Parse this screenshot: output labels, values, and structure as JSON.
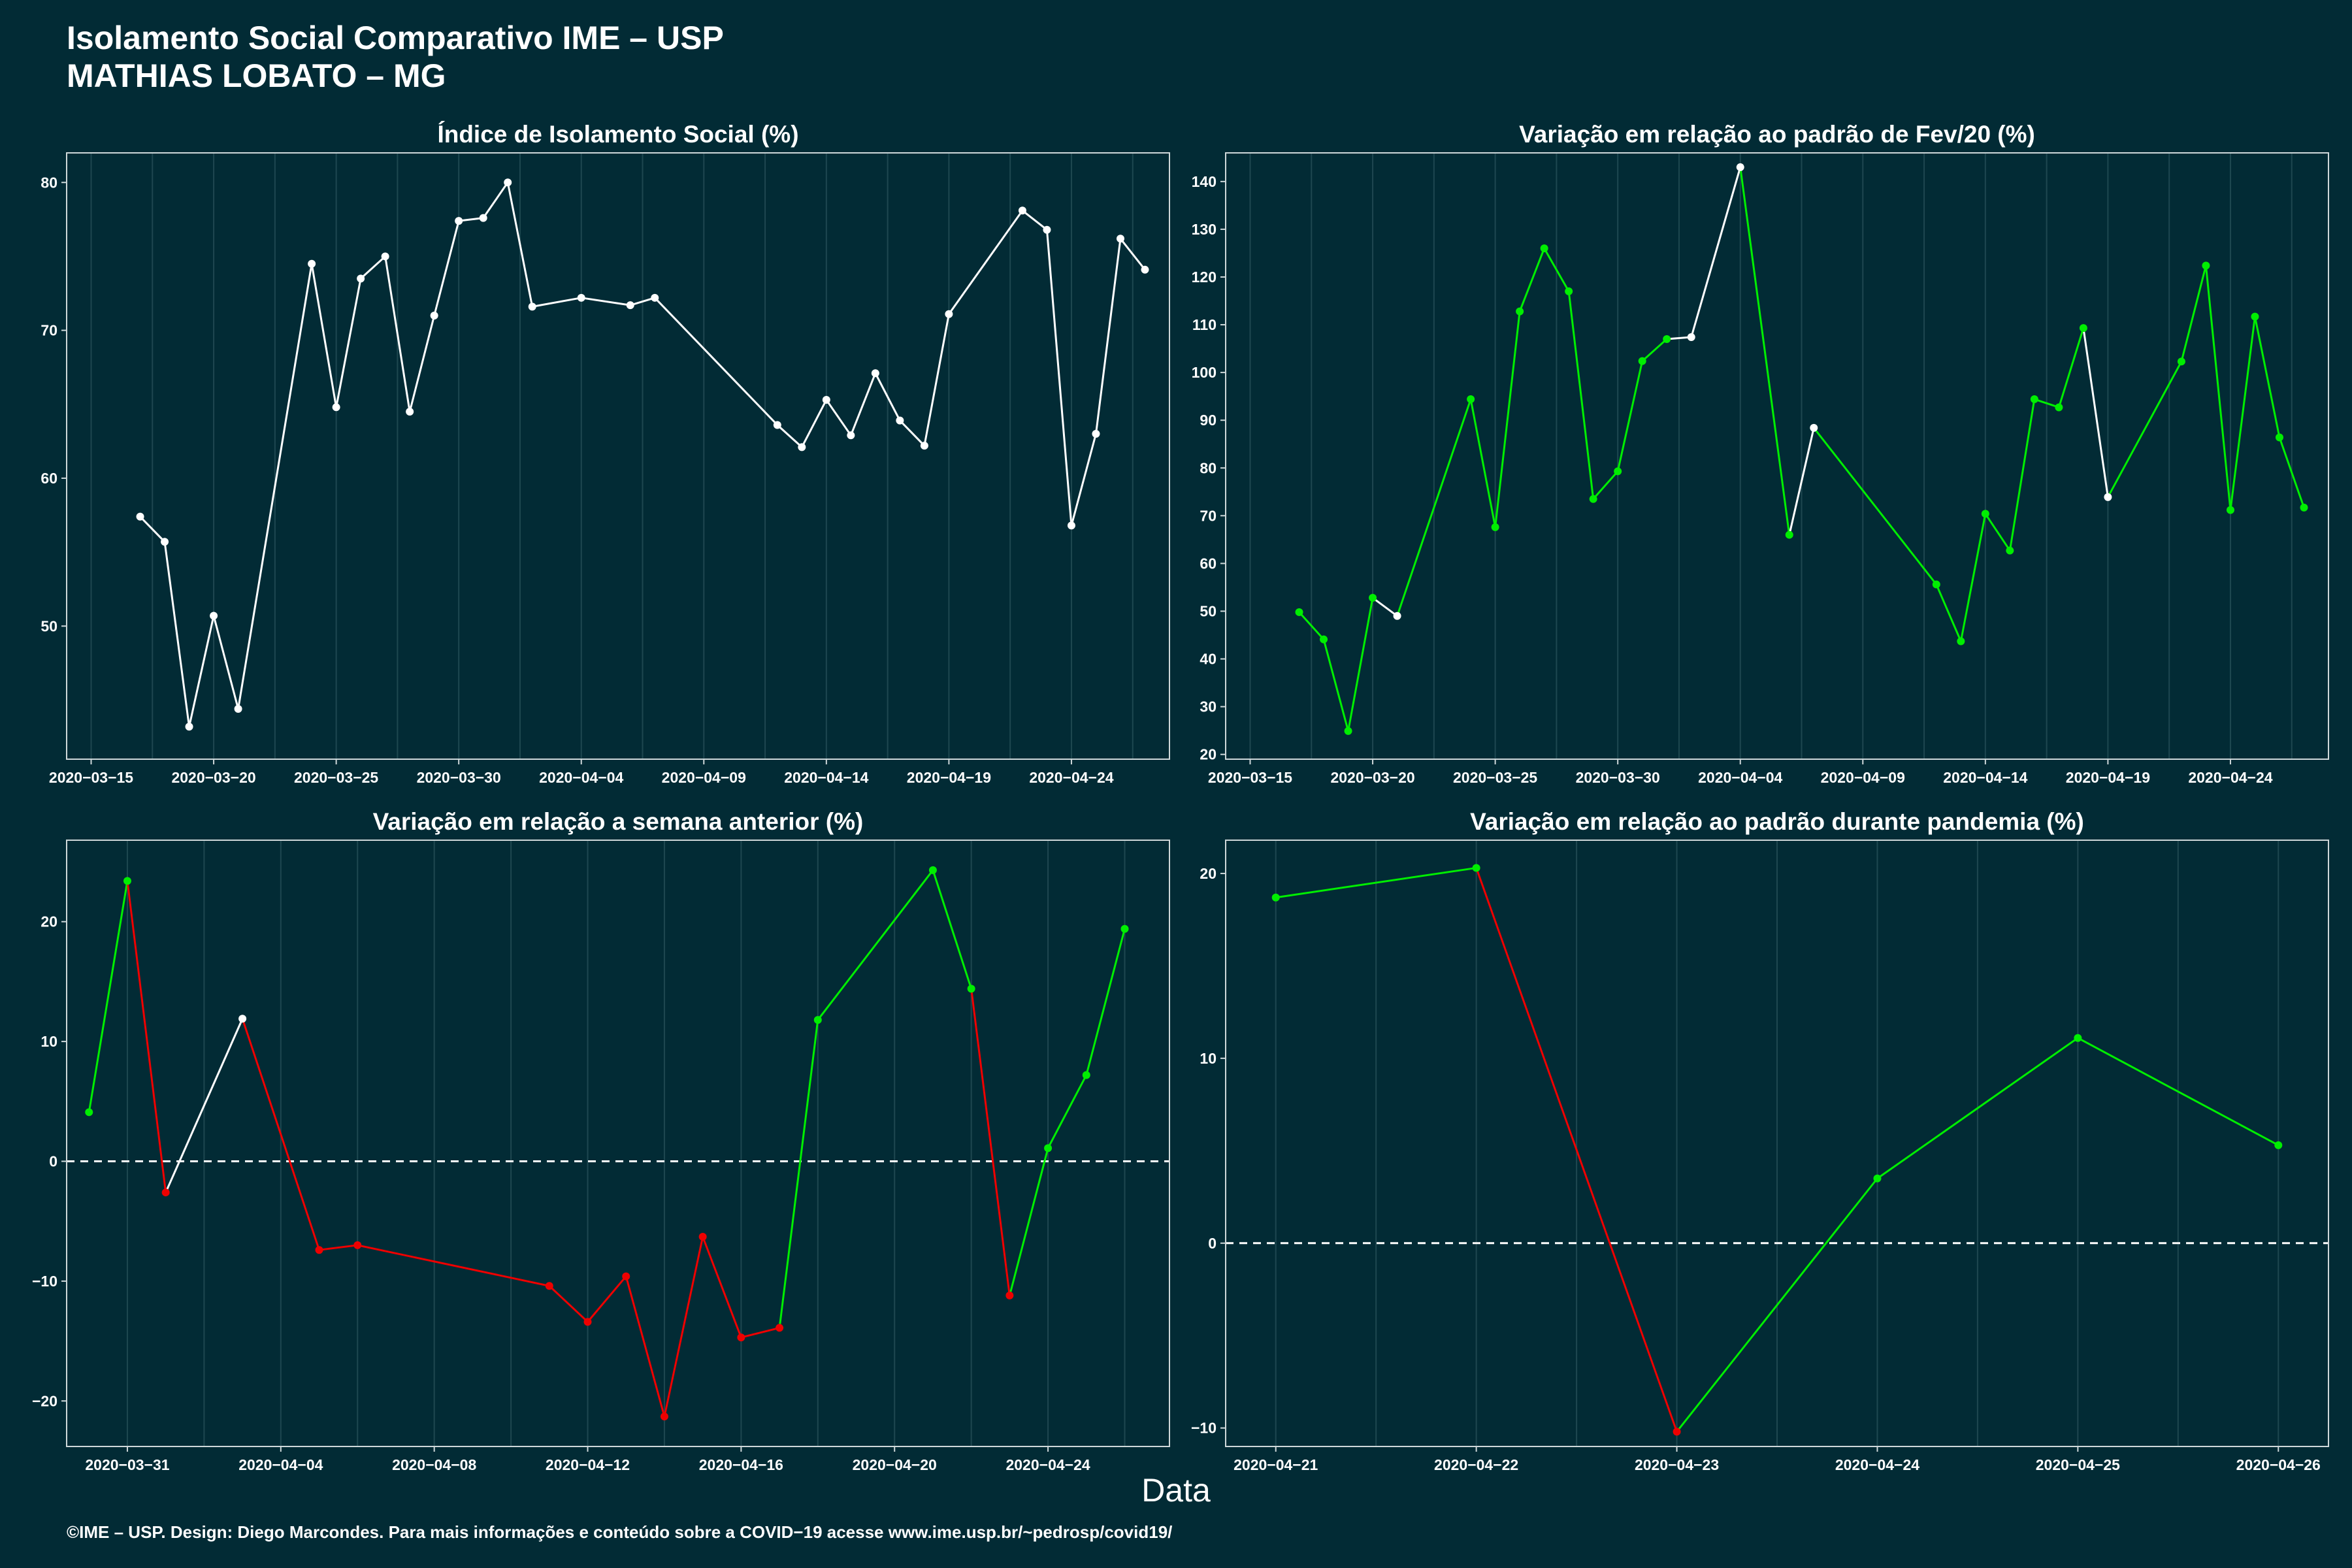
{
  "header": {
    "title_line1": "Isolamento Social Comparativo IME – USP",
    "title_line2": "MATHIAS LOBATO – MG"
  },
  "xlabel": "Data",
  "footer": "©IME – USP. Design: Diego Marcondes. Para mais informações e conteúdo sobre a COVID−19 acesse www.ime.usp.br/~pedrosp/covid19/",
  "colors": {
    "background": "#022b35",
    "white": "#ffffff",
    "green": "#00ee00",
    "red": "#ee0000",
    "grid": "#1e4750",
    "axis": "#cfd8da"
  },
  "chart_data": [
    {
      "type": "line",
      "title": "Índice de Isolamento Social (%)",
      "xlabel": "Data",
      "ylabel": "",
      "x_type": "date",
      "xlim": [
        "2020-03-14",
        "2020-04-28"
      ],
      "ylim": [
        41,
        82
      ],
      "yticks": [
        50,
        60,
        70,
        80
      ],
      "xticks": [
        "2020-03-15",
        "2020-03-20",
        "2020-03-25",
        "2020-03-30",
        "2020-04-04",
        "2020-04-09",
        "2020-04-14",
        "2020-04-19",
        "2020-04-24"
      ],
      "grid": true,
      "points": [
        {
          "x": "2020-03-17",
          "y": 57.4,
          "c": "white"
        },
        {
          "x": "2020-03-18",
          "y": 55.7,
          "c": "white"
        },
        {
          "x": "2020-03-19",
          "y": 43.2,
          "c": "white"
        },
        {
          "x": "2020-03-20",
          "y": 50.7,
          "c": "white"
        },
        {
          "x": "2020-03-21",
          "y": 44.4,
          "c": "white"
        },
        {
          "x": "2020-03-24",
          "y": 74.5,
          "c": "white"
        },
        {
          "x": "2020-03-25",
          "y": 64.8,
          "c": "white"
        },
        {
          "x": "2020-03-26",
          "y": 73.5,
          "c": "white"
        },
        {
          "x": "2020-03-27",
          "y": 75.0,
          "c": "white"
        },
        {
          "x": "2020-03-28",
          "y": 64.5,
          "c": "white"
        },
        {
          "x": "2020-03-29",
          "y": 71.0,
          "c": "white"
        },
        {
          "x": "2020-03-30",
          "y": 77.4,
          "c": "white"
        },
        {
          "x": "2020-03-31",
          "y": 77.6,
          "c": "white"
        },
        {
          "x": "2020-04-01",
          "y": 80.0,
          "c": "white"
        },
        {
          "x": "2020-04-02",
          "y": 71.6,
          "c": "white"
        },
        {
          "x": "2020-04-04",
          "y": 72.2,
          "c": "white"
        },
        {
          "x": "2020-04-06",
          "y": 71.7,
          "c": "white"
        },
        {
          "x": "2020-04-07",
          "y": 72.2,
          "c": "white"
        },
        {
          "x": "2020-04-12",
          "y": 63.6,
          "c": "white"
        },
        {
          "x": "2020-04-13",
          "y": 62.1,
          "c": "white"
        },
        {
          "x": "2020-04-14",
          "y": 65.3,
          "c": "white"
        },
        {
          "x": "2020-04-15",
          "y": 62.9,
          "c": "white"
        },
        {
          "x": "2020-04-16",
          "y": 67.1,
          "c": "white"
        },
        {
          "x": "2020-04-17",
          "y": 63.9,
          "c": "white"
        },
        {
          "x": "2020-04-18",
          "y": 62.2,
          "c": "white"
        },
        {
          "x": "2020-04-19",
          "y": 71.1,
          "c": "white"
        },
        {
          "x": "2020-04-22",
          "y": 78.1,
          "c": "white"
        },
        {
          "x": "2020-04-23",
          "y": 76.8,
          "c": "white"
        },
        {
          "x": "2020-04-24",
          "y": 56.8,
          "c": "white"
        },
        {
          "x": "2020-04-25",
          "y": 63.0,
          "c": "white"
        },
        {
          "x": "2020-04-26",
          "y": 76.2,
          "c": "white"
        },
        {
          "x": "2020-04-27",
          "y": 74.1,
          "c": "white"
        }
      ]
    },
    {
      "type": "line",
      "title": "Variação em relação ao padrão de Fev/20 (%)",
      "xlabel": "Data",
      "ylabel": "",
      "x_type": "date",
      "xlim": [
        "2020-03-14",
        "2020-04-28"
      ],
      "ylim": [
        19,
        146
      ],
      "yticks": [
        20,
        30,
        40,
        50,
        60,
        70,
        80,
        90,
        100,
        110,
        120,
        130,
        140
      ],
      "xticks": [
        "2020-03-15",
        "2020-03-20",
        "2020-03-25",
        "2020-03-30",
        "2020-04-04",
        "2020-04-09",
        "2020-04-14",
        "2020-04-19",
        "2020-04-24"
      ],
      "grid": true,
      "points": [
        {
          "x": "2020-03-17",
          "y": 49.8,
          "c": "green"
        },
        {
          "x": "2020-03-18",
          "y": 44.1,
          "c": "green"
        },
        {
          "x": "2020-03-19",
          "y": 24.9,
          "c": "green"
        },
        {
          "x": "2020-03-20",
          "y": 52.8,
          "c": "green"
        },
        {
          "x": "2020-03-21",
          "y": 49.0,
          "c": "white"
        },
        {
          "x": "2020-03-24",
          "y": 94.4,
          "c": "green"
        },
        {
          "x": "2020-03-25",
          "y": 67.6,
          "c": "green"
        },
        {
          "x": "2020-03-26",
          "y": 112.8,
          "c": "green"
        },
        {
          "x": "2020-03-27",
          "y": 126.0,
          "c": "green"
        },
        {
          "x": "2020-03-28",
          "y": 117.0,
          "c": "green"
        },
        {
          "x": "2020-03-29",
          "y": 73.5,
          "c": "green"
        },
        {
          "x": "2020-03-30",
          "y": 79.3,
          "c": "green"
        },
        {
          "x": "2020-03-31",
          "y": 102.4,
          "c": "green"
        },
        {
          "x": "2020-04-01",
          "y": 107.0,
          "c": "green"
        },
        {
          "x": "2020-04-02",
          "y": 107.4,
          "c": "white"
        },
        {
          "x": "2020-04-04",
          "y": 143.0,
          "c": "white"
        },
        {
          "x": "2020-04-06",
          "y": 66.0,
          "c": "green"
        },
        {
          "x": "2020-04-07",
          "y": 88.4,
          "c": "white"
        },
        {
          "x": "2020-04-12",
          "y": 55.6,
          "c": "green"
        },
        {
          "x": "2020-04-13",
          "y": 43.7,
          "c": "green"
        },
        {
          "x": "2020-04-14",
          "y": 70.4,
          "c": "green"
        },
        {
          "x": "2020-04-15",
          "y": 62.7,
          "c": "green"
        },
        {
          "x": "2020-04-16",
          "y": 94.4,
          "c": "green"
        },
        {
          "x": "2020-04-17",
          "y": 92.7,
          "c": "green"
        },
        {
          "x": "2020-04-18",
          "y": 109.3,
          "c": "green"
        },
        {
          "x": "2020-04-19",
          "y": 73.9,
          "c": "white"
        },
        {
          "x": "2020-04-22",
          "y": 102.3,
          "c": "green"
        },
        {
          "x": "2020-04-23",
          "y": 122.4,
          "c": "green"
        },
        {
          "x": "2020-04-24",
          "y": 71.2,
          "c": "green"
        },
        {
          "x": "2020-04-25",
          "y": 111.7,
          "c": "green"
        },
        {
          "x": "2020-04-26",
          "y": 86.4,
          "c": "green"
        },
        {
          "x": "2020-04-27",
          "y": 71.7,
          "c": "green"
        }
      ]
    },
    {
      "type": "line",
      "title": "Variação em relação a semana anterior (%)",
      "xlabel": "Data",
      "ylabel": "",
      "x_type": "date",
      "xlim": [
        "2020-03-29T10:00",
        "2020-04-27T04:00"
      ],
      "ylim": [
        -23.8,
        26.8
      ],
      "yticks": [
        -20,
        -10,
        0,
        10,
        20
      ],
      "xticks": [
        "2020-03-31",
        "2020-04-04",
        "2020-04-08",
        "2020-04-12",
        "2020-04-16",
        "2020-04-20",
        "2020-04-24"
      ],
      "grid": true,
      "hline": 0,
      "points": [
        {
          "x": "2020-03-30",
          "y": 4.1,
          "c": "green"
        },
        {
          "x": "2020-03-31",
          "y": 23.4,
          "c": "green"
        },
        {
          "x": "2020-04-01",
          "y": -2.6,
          "c": "red"
        },
        {
          "x": "2020-04-03",
          "y": 11.9,
          "c": "white"
        },
        {
          "x": "2020-04-05",
          "y": -7.4,
          "c": "red"
        },
        {
          "x": "2020-04-06",
          "y": -7.0,
          "c": "red"
        },
        {
          "x": "2020-04-11",
          "y": -10.4,
          "c": "red"
        },
        {
          "x": "2020-04-12",
          "y": -13.4,
          "c": "red"
        },
        {
          "x": "2020-04-13",
          "y": -9.6,
          "c": "red"
        },
        {
          "x": "2020-04-14",
          "y": -21.3,
          "c": "red"
        },
        {
          "x": "2020-04-15",
          "y": -6.3,
          "c": "red"
        },
        {
          "x": "2020-04-16",
          "y": -14.7,
          "c": "red"
        },
        {
          "x": "2020-04-17",
          "y": -13.9,
          "c": "red"
        },
        {
          "x": "2020-04-18",
          "y": 11.8,
          "c": "green"
        },
        {
          "x": "2020-04-21",
          "y": 24.3,
          "c": "green"
        },
        {
          "x": "2020-04-22",
          "y": 14.4,
          "c": "green"
        },
        {
          "x": "2020-04-23",
          "y": -11.2,
          "c": "red"
        },
        {
          "x": "2020-04-24",
          "y": 1.1,
          "c": "green"
        },
        {
          "x": "2020-04-25",
          "y": 7.2,
          "c": "green"
        },
        {
          "x": "2020-04-26",
          "y": 19.4,
          "c": "green"
        }
      ]
    },
    {
      "type": "line",
      "title": "Variação em relação ao padrão durante pandemia (%)",
      "xlabel": "Data",
      "ylabel": "",
      "x_type": "date",
      "xlim": [
        "2020-04-20T18:00",
        "2020-04-26T06:00"
      ],
      "ylim": [
        -11.0,
        21.8
      ],
      "yticks": [
        -10,
        0,
        10,
        20
      ],
      "xticks": [
        "2020-04-21",
        "2020-04-22",
        "2020-04-23",
        "2020-04-24",
        "2020-04-25",
        "2020-04-26"
      ],
      "grid": true,
      "hline": 0,
      "points": [
        {
          "x": "2020-04-21",
          "y": 18.7,
          "c": "green"
        },
        {
          "x": "2020-04-22",
          "y": 20.3,
          "c": "green"
        },
        {
          "x": "2020-04-23",
          "y": -10.2,
          "c": "red"
        },
        {
          "x": "2020-04-24",
          "y": 3.5,
          "c": "green"
        },
        {
          "x": "2020-04-25",
          "y": 11.1,
          "c": "green"
        },
        {
          "x": "2020-04-26",
          "y": 5.3,
          "c": "green"
        }
      ]
    }
  ]
}
